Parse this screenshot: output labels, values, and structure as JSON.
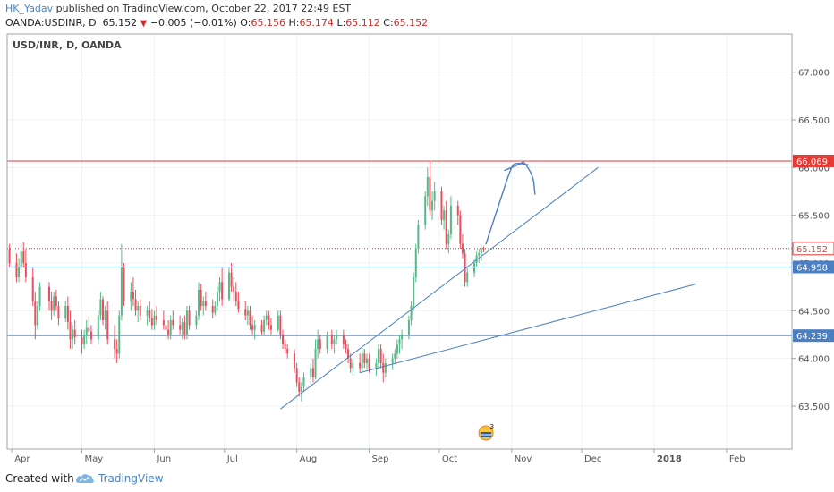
{
  "header": {
    "author": "HK_Yadav",
    "published": " published on TradingView.com, October 22, 2017 22:49 EST",
    "symbol": "OANDA:USDINR, D",
    "last": "65.152",
    "change": "−0.005 (−0.01%)",
    "ohlc": [
      {
        "label": "O:",
        "value": "65.156"
      },
      {
        "label": "H:",
        "value": "65.174"
      },
      {
        "label": "L:",
        "value": "65.112"
      },
      {
        "label": "C:",
        "value": "65.152"
      }
    ]
  },
  "chart_data": {
    "type": "candlestick",
    "title": "USD/INR, D, OANDA",
    "yaxis": {
      "ticks": [
        "63.500",
        "64.000",
        "64.500",
        "65.000",
        "65.500",
        "66.000",
        "66.500",
        "67.000"
      ],
      "range": [
        63.05,
        67.4
      ]
    },
    "xaxis": {
      "ticks": [
        {
          "label": "Apr",
          "date": "2017-04-01"
        },
        {
          "label": "May",
          "date": "2017-05-01"
        },
        {
          "label": "Jun",
          "date": "2017-06-01"
        },
        {
          "label": "Jul",
          "date": "2017-07-01"
        },
        {
          "label": "Aug",
          "date": "2017-08-01"
        },
        {
          "label": "Sep",
          "date": "2017-09-01"
        },
        {
          "label": "Oct",
          "date": "2017-10-01"
        },
        {
          "label": "Nov",
          "date": "2017-11-01"
        },
        {
          "label": "Dec",
          "date": "2017-12-01"
        },
        {
          "label": "2018",
          "date": "2018-01-01"
        },
        {
          "label": "Feb",
          "date": "2018-02-01"
        }
      ],
      "range": [
        "2017-03-30",
        "2018-03-01"
      ]
    },
    "price_levels": [
      {
        "value": 66.069,
        "label": "66.069",
        "color": "#e53935",
        "style": "solid"
      },
      {
        "value": 65.152,
        "label": "65.152",
        "color": "#e53935",
        "style": "dotted"
      },
      {
        "value": 64.958,
        "label": "64.958",
        "color": "#4a7fc1",
        "style": "solid"
      },
      {
        "value": 64.239,
        "label": "64.239",
        "color": "#4a7fc1",
        "style": "solid"
      }
    ],
    "trendlines": [
      {
        "from": {
          "date": "2017-07-25",
          "price": 63.47
        },
        "to": {
          "date": "2017-12-08",
          "price": 66.0
        },
        "color": "#4a7fc1"
      },
      {
        "from": {
          "date": "2017-08-28",
          "price": 63.85
        },
        "to": {
          "date": "2018-01-19",
          "price": 64.78
        },
        "color": "#4a7fc1"
      }
    ],
    "arrow_path": [
      {
        "date": "2017-10-21",
        "price": 65.2
      },
      {
        "date": "2017-10-27",
        "price": 65.65
      },
      {
        "date": "2017-11-01",
        "price": 66.02
      },
      {
        "date": "2017-11-03",
        "price": 66.05
      },
      {
        "date": "2017-11-08",
        "price": 66.03
      }
    ],
    "arrow_head_left": [
      {
        "date": "2017-10-29",
        "price": 65.97
      },
      {
        "date": "2017-11-04",
        "price": 66.03
      },
      {
        "date": "2017-11-06",
        "price": 66.06
      }
    ],
    "arrow_head_right": [
      {
        "date": "2017-11-06",
        "price": 66.06
      },
      {
        "date": "2017-11-10",
        "price": 65.95
      },
      {
        "date": "2017-11-11",
        "price": 65.72
      }
    ],
    "event_badge": {
      "date": "2017-10-21",
      "count": "3"
    },
    "colors": {
      "up": "#53b987",
      "down": "#eb4d5c",
      "grid": "#eef1f4",
      "border": "#9aa4ad",
      "axis_text": "#555555",
      "drawing": "#4a7fc1"
    },
    "grid": true,
    "candles": [
      [
        "2017-03-31",
        65.15,
        65.2,
        64.95,
        65.0
      ],
      [
        "2017-04-03",
        65.0,
        65.1,
        64.8,
        64.85
      ],
      [
        "2017-04-04",
        64.85,
        65.05,
        64.8,
        64.95
      ],
      [
        "2017-04-05",
        64.95,
        65.2,
        64.9,
        65.12
      ],
      [
        "2017-04-06",
        65.12,
        65.22,
        64.95,
        65.0
      ],
      [
        "2017-04-07",
        65.0,
        65.15,
        64.8,
        64.85
      ],
      [
        "2017-04-10",
        64.85,
        64.95,
        64.55,
        64.6
      ],
      [
        "2017-04-11",
        64.6,
        64.7,
        64.2,
        64.35
      ],
      [
        "2017-04-12",
        64.35,
        64.6,
        64.3,
        64.55
      ],
      [
        "2017-04-13",
        64.55,
        64.8,
        64.5,
        64.75
      ],
      [
        "2017-04-17",
        64.75,
        64.8,
        64.5,
        64.6
      ],
      [
        "2017-04-18",
        64.6,
        64.7,
        64.4,
        64.5
      ],
      [
        "2017-04-19",
        64.5,
        64.7,
        64.45,
        64.65
      ],
      [
        "2017-04-20",
        64.65,
        64.72,
        64.5,
        64.55
      ],
      [
        "2017-04-21",
        64.55,
        64.6,
        64.35,
        64.42
      ],
      [
        "2017-04-24",
        64.42,
        64.6,
        64.38,
        64.55
      ],
      [
        "2017-04-25",
        64.55,
        64.65,
        64.3,
        64.38
      ],
      [
        "2017-04-26",
        64.38,
        64.5,
        64.1,
        64.2
      ],
      [
        "2017-04-27",
        64.2,
        64.35,
        64.1,
        64.3
      ],
      [
        "2017-04-28",
        64.3,
        64.4,
        64.15,
        64.22
      ],
      [
        "2017-05-01",
        64.22,
        64.3,
        64.05,
        64.15
      ],
      [
        "2017-05-02",
        64.15,
        64.3,
        64.1,
        64.25
      ],
      [
        "2017-05-03",
        64.25,
        64.4,
        64.15,
        64.32
      ],
      [
        "2017-05-04",
        64.32,
        64.45,
        64.2,
        64.28
      ],
      [
        "2017-05-05",
        64.28,
        64.35,
        64.15,
        64.2
      ],
      [
        "2017-05-08",
        64.2,
        64.5,
        64.15,
        64.45
      ],
      [
        "2017-05-09",
        64.45,
        64.7,
        64.4,
        64.62
      ],
      [
        "2017-05-10",
        64.62,
        64.65,
        64.35,
        64.4
      ],
      [
        "2017-05-11",
        64.4,
        64.55,
        64.3,
        64.5
      ],
      [
        "2017-05-12",
        64.5,
        64.6,
        64.15,
        64.2
      ],
      [
        "2017-05-15",
        64.2,
        64.35,
        64.0,
        64.1
      ],
      [
        "2017-05-16",
        64.1,
        64.2,
        63.95,
        64.05
      ],
      [
        "2017-05-17",
        64.05,
        64.5,
        64.0,
        64.45
      ],
      [
        "2017-05-18",
        64.45,
        65.2,
        64.4,
        64.95
      ],
      [
        "2017-05-19",
        64.95,
        65.0,
        64.55,
        64.6
      ],
      [
        "2017-05-22",
        64.6,
        64.8,
        64.5,
        64.7
      ],
      [
        "2017-05-23",
        64.7,
        64.85,
        64.55,
        64.62
      ],
      [
        "2017-05-24",
        64.62,
        64.72,
        64.45,
        64.5
      ],
      [
        "2017-05-25",
        64.5,
        64.6,
        64.38,
        64.55
      ],
      [
        "2017-05-26",
        64.55,
        64.62,
        64.4,
        64.45
      ],
      [
        "2017-05-29",
        64.45,
        64.55,
        64.35,
        64.5
      ],
      [
        "2017-05-30",
        64.5,
        64.6,
        64.38,
        64.42
      ],
      [
        "2017-05-31",
        64.42,
        64.52,
        64.3,
        64.35
      ],
      [
        "2017-06-01",
        64.35,
        64.5,
        64.3,
        64.45
      ],
      [
        "2017-06-02",
        64.45,
        64.55,
        64.35,
        64.4
      ],
      [
        "2017-06-05",
        64.4,
        64.5,
        64.3,
        64.35
      ],
      [
        "2017-06-06",
        64.35,
        64.42,
        64.25,
        64.3
      ],
      [
        "2017-06-07",
        64.3,
        64.4,
        64.2,
        64.25
      ],
      [
        "2017-06-08",
        64.25,
        64.45,
        64.2,
        64.4
      ],
      [
        "2017-06-09",
        64.4,
        64.5,
        64.3,
        64.35
      ],
      [
        "2017-06-12",
        64.35,
        64.45,
        64.25,
        64.3
      ],
      [
        "2017-06-13",
        64.3,
        64.42,
        64.2,
        64.38
      ],
      [
        "2017-06-14",
        64.38,
        64.45,
        64.2,
        64.25
      ],
      [
        "2017-06-15",
        64.25,
        64.55,
        64.2,
        64.5
      ],
      [
        "2017-06-16",
        64.5,
        64.55,
        64.3,
        64.35
      ],
      [
        "2017-06-19",
        64.35,
        64.5,
        64.3,
        64.45
      ],
      [
        "2017-06-20",
        64.45,
        64.8,
        64.4,
        64.72
      ],
      [
        "2017-06-21",
        64.72,
        64.78,
        64.5,
        64.55
      ],
      [
        "2017-06-22",
        64.55,
        64.65,
        64.45,
        64.6
      ],
      [
        "2017-06-23",
        64.6,
        64.7,
        64.5,
        64.55
      ],
      [
        "2017-06-26",
        64.55,
        64.62,
        64.42,
        64.48
      ],
      [
        "2017-06-27",
        64.48,
        64.6,
        64.45,
        64.55
      ],
      [
        "2017-06-28",
        64.55,
        64.75,
        64.5,
        64.7
      ],
      [
        "2017-06-29",
        64.7,
        64.85,
        64.6,
        64.8
      ],
      [
        "2017-06-30",
        64.8,
        64.95,
        64.55,
        64.62
      ],
      [
        "2017-07-03",
        64.62,
        64.95,
        64.6,
        64.9
      ],
      [
        "2017-07-04",
        64.9,
        65.0,
        64.7,
        64.75
      ],
      [
        "2017-07-05",
        64.75,
        64.85,
        64.6,
        64.7
      ],
      [
        "2017-07-06",
        64.7,
        64.8,
        64.55,
        64.6
      ],
      [
        "2017-07-07",
        64.6,
        64.7,
        64.48,
        64.52
      ],
      [
        "2017-07-10",
        64.52,
        64.6,
        64.4,
        64.45
      ],
      [
        "2017-07-11",
        64.45,
        64.55,
        64.35,
        64.5
      ],
      [
        "2017-07-12",
        64.5,
        64.55,
        64.3,
        64.35
      ],
      [
        "2017-07-13",
        64.35,
        64.45,
        64.25,
        64.3
      ],
      [
        "2017-07-14",
        64.3,
        64.4,
        64.2,
        64.35
      ],
      [
        "2017-07-17",
        64.35,
        64.4,
        64.25,
        64.28
      ],
      [
        "2017-07-18",
        64.28,
        64.45,
        64.25,
        64.4
      ],
      [
        "2017-07-19",
        64.4,
        64.5,
        64.35,
        64.45
      ],
      [
        "2017-07-20",
        64.45,
        64.5,
        64.3,
        64.35
      ],
      [
        "2017-07-21",
        64.35,
        64.42,
        64.25,
        64.3
      ],
      [
        "2017-07-24",
        64.3,
        64.5,
        64.28,
        64.45
      ],
      [
        "2017-07-25",
        64.45,
        64.5,
        64.2,
        64.25
      ],
      [
        "2017-07-26",
        64.25,
        64.3,
        64.1,
        64.15
      ],
      [
        "2017-07-27",
        64.15,
        64.2,
        64.05,
        64.1
      ],
      [
        "2017-07-28",
        64.1,
        64.15,
        64.0,
        64.05
      ],
      [
        "2017-07-31",
        64.05,
        64.1,
        63.85,
        63.9
      ],
      [
        "2017-08-01",
        63.9,
        63.95,
        63.7,
        63.75
      ],
      [
        "2017-08-02",
        63.75,
        63.8,
        63.6,
        63.65
      ],
      [
        "2017-08-03",
        63.65,
        63.75,
        63.55,
        63.7
      ],
      [
        "2017-08-04",
        63.7,
        63.85,
        63.65,
        63.8
      ],
      [
        "2017-08-07",
        63.8,
        63.95,
        63.7,
        63.9
      ],
      [
        "2017-08-08",
        63.9,
        64.0,
        63.75,
        63.8
      ],
      [
        "2017-08-09",
        63.8,
        64.2,
        63.78,
        64.1
      ],
      [
        "2017-08-10",
        64.1,
        64.3,
        64.0,
        64.2
      ],
      [
        "2017-08-11",
        64.2,
        64.25,
        64.05,
        64.1
      ],
      [
        "2017-08-14",
        64.1,
        64.28,
        64.05,
        64.25
      ],
      [
        "2017-08-16",
        64.25,
        64.3,
        64.1,
        64.15
      ],
      [
        "2017-08-17",
        64.15,
        64.25,
        64.05,
        64.2
      ],
      [
        "2017-08-18",
        64.2,
        64.3,
        64.15,
        64.25
      ],
      [
        "2017-08-21",
        64.25,
        64.3,
        64.1,
        64.15
      ],
      [
        "2017-08-22",
        64.15,
        64.2,
        64.05,
        64.1
      ],
      [
        "2017-08-23",
        64.1,
        64.15,
        63.95,
        64.0
      ],
      [
        "2017-08-24",
        64.0,
        64.05,
        63.85,
        63.9
      ],
      [
        "2017-08-25",
        63.9,
        64.0,
        63.82,
        63.95
      ],
      [
        "2017-08-28",
        63.95,
        64.05,
        63.85,
        63.9
      ],
      [
        "2017-08-29",
        63.9,
        64.12,
        63.85,
        64.05
      ],
      [
        "2017-08-30",
        64.05,
        64.1,
        63.9,
        63.95
      ],
      [
        "2017-08-31",
        63.95,
        64.05,
        63.88,
        64.0
      ],
      [
        "2017-09-01",
        64.0,
        64.05,
        63.85,
        63.9
      ],
      [
        "2017-09-04",
        63.9,
        64.0,
        63.82,
        63.95
      ],
      [
        "2017-09-05",
        63.95,
        64.15,
        63.9,
        64.1
      ],
      [
        "2017-09-06",
        64.1,
        64.15,
        63.9,
        63.95
      ],
      [
        "2017-09-07",
        63.95,
        64.05,
        63.75,
        63.85
      ],
      [
        "2017-09-08",
        63.85,
        64.0,
        63.8,
        63.95
      ],
      [
        "2017-09-11",
        63.95,
        64.05,
        63.88,
        64.0
      ],
      [
        "2017-09-12",
        64.0,
        64.1,
        63.95,
        64.05
      ],
      [
        "2017-09-13",
        64.05,
        64.2,
        64.0,
        64.15
      ],
      [
        "2017-09-14",
        64.15,
        64.25,
        64.05,
        64.2
      ],
      [
        "2017-09-15",
        64.2,
        64.3,
        64.1,
        64.25
      ],
      [
        "2017-09-18",
        64.25,
        64.45,
        64.2,
        64.4
      ],
      [
        "2017-09-19",
        64.4,
        64.6,
        64.35,
        64.55
      ],
      [
        "2017-09-20",
        64.55,
        64.9,
        64.5,
        64.85
      ],
      [
        "2017-09-21",
        64.85,
        65.2,
        64.8,
        65.15
      ],
      [
        "2017-09-22",
        65.15,
        65.45,
        65.1,
        65.4
      ],
      [
        "2017-09-25",
        65.4,
        65.75,
        65.35,
        65.7
      ],
      [
        "2017-09-26",
        65.7,
        66.0,
        65.6,
        65.9
      ],
      [
        "2017-09-27",
        65.9,
        66.07,
        65.5,
        65.55
      ],
      [
        "2017-09-28",
        65.55,
        65.75,
        65.45,
        65.65
      ],
      [
        "2017-09-29",
        65.65,
        65.85,
        65.55,
        65.75
      ],
      [
        "2017-10-02",
        65.75,
        65.8,
        65.4,
        65.45
      ],
      [
        "2017-10-03",
        65.45,
        65.6,
        65.35,
        65.55
      ],
      [
        "2017-10-04",
        65.55,
        65.65,
        65.15,
        65.2
      ],
      [
        "2017-10-05",
        65.2,
        65.35,
        65.1,
        65.3
      ],
      [
        "2017-10-06",
        65.3,
        65.7,
        65.25,
        65.6
      ],
      [
        "2017-10-09",
        65.6,
        65.65,
        65.4,
        65.5
      ],
      [
        "2017-10-10",
        65.5,
        65.55,
        65.15,
        65.2
      ],
      [
        "2017-10-11",
        65.2,
        65.3,
        65.05,
        65.1
      ],
      [
        "2017-10-12",
        65.1,
        65.15,
        64.75,
        64.8
      ],
      [
        "2017-10-13",
        64.8,
        64.95,
        64.75,
        64.9
      ],
      [
        "2017-10-16",
        64.9,
        65.05,
        64.85,
        65.0
      ],
      [
        "2017-10-17",
        65.0,
        65.12,
        64.95,
        65.08
      ],
      [
        "2017-10-18",
        65.08,
        65.15,
        65.0,
        65.1
      ],
      [
        "2017-10-19",
        65.1,
        65.17,
        65.02,
        65.15
      ],
      [
        "2017-10-20",
        65.156,
        65.174,
        65.112,
        65.152
      ]
    ]
  },
  "footer": {
    "created_with": "Created with",
    "brand": "TradingView"
  }
}
